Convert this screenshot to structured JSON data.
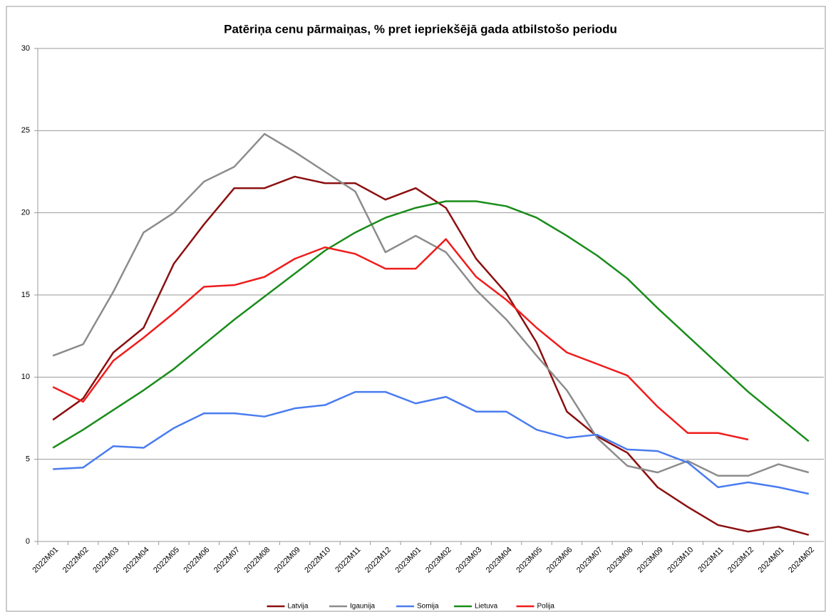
{
  "chart_data": {
    "type": "line",
    "title": "Patēriņa cenu pārmaiņas, % pret iepriekšējā gada atbilstošo periodu",
    "categories": [
      "2022M01",
      "2022M02",
      "2022M03",
      "2022M04",
      "2022M05",
      "2022M06",
      "2022M07",
      "2022M08",
      "2022M09",
      "2022M10",
      "2022M11",
      "2022M12",
      "2023M01",
      "2023M02",
      "2023M03",
      "2023M04",
      "2023M05",
      "2023M06",
      "2023M07",
      "2023M08",
      "2023M09",
      "2023M10",
      "2023M11",
      "2023M12",
      "2024M01",
      "2024M02"
    ],
    "series": [
      {
        "name": "Latvija",
        "color": "#8b1010",
        "values": [
          7.4,
          8.7,
          11.5,
          13.0,
          16.9,
          19.3,
          21.5,
          21.5,
          22.2,
          21.8,
          21.8,
          20.8,
          21.5,
          20.3,
          17.2,
          15.1,
          12.1,
          7.9,
          6.4,
          5.4,
          3.3,
          2.1,
          1.0,
          0.6,
          0.9,
          0.4
        ]
      },
      {
        "name": "Igaunija",
        "color": "#8c8c8c",
        "values": [
          11.3,
          12.0,
          15.2,
          18.8,
          20.0,
          21.9,
          22.8,
          24.8,
          23.7,
          22.5,
          21.3,
          17.6,
          18.6,
          17.6,
          15.3,
          13.5,
          11.3,
          9.2,
          6.3,
          4.6,
          4.2,
          4.9,
          4.0,
          4.0,
          4.7,
          4.2
        ]
      },
      {
        "name": "Somija",
        "color": "#4a7cf0",
        "values": [
          4.4,
          4.5,
          5.8,
          5.7,
          6.9,
          7.8,
          7.8,
          7.6,
          8.1,
          8.3,
          9.1,
          9.1,
          8.4,
          8.8,
          7.9,
          7.9,
          6.8,
          6.3,
          6.5,
          5.6,
          5.5,
          4.8,
          3.3,
          3.6,
          3.3,
          2.9
        ]
      },
      {
        "name": "Lietuva",
        "color": "#1a8c1a",
        "values": [
          5.7,
          6.8,
          8.0,
          9.2,
          10.5,
          12.0,
          13.5,
          14.9,
          16.3,
          17.7,
          18.8,
          19.7,
          20.3,
          20.7,
          20.7,
          20.4,
          19.7,
          18.6,
          17.4,
          16.0,
          14.2,
          12.5,
          10.8,
          9.1,
          7.6,
          6.1
        ]
      },
      {
        "name": "Polija",
        "color": "#f01c1c",
        "values": [
          9.4,
          8.5,
          11.0,
          12.4,
          13.9,
          15.5,
          15.6,
          16.1,
          17.2,
          17.9,
          17.5,
          16.6,
          16.6,
          18.4,
          16.1,
          14.7,
          13.0,
          11.5,
          10.8,
          10.1,
          8.2,
          6.6,
          6.6,
          6.2,
          null,
          null
        ]
      }
    ],
    "ylim": [
      0,
      30
    ],
    "yticks": [
      0,
      5,
      10,
      15,
      20,
      25,
      30
    ],
    "grid": true,
    "legend": "bottom"
  }
}
